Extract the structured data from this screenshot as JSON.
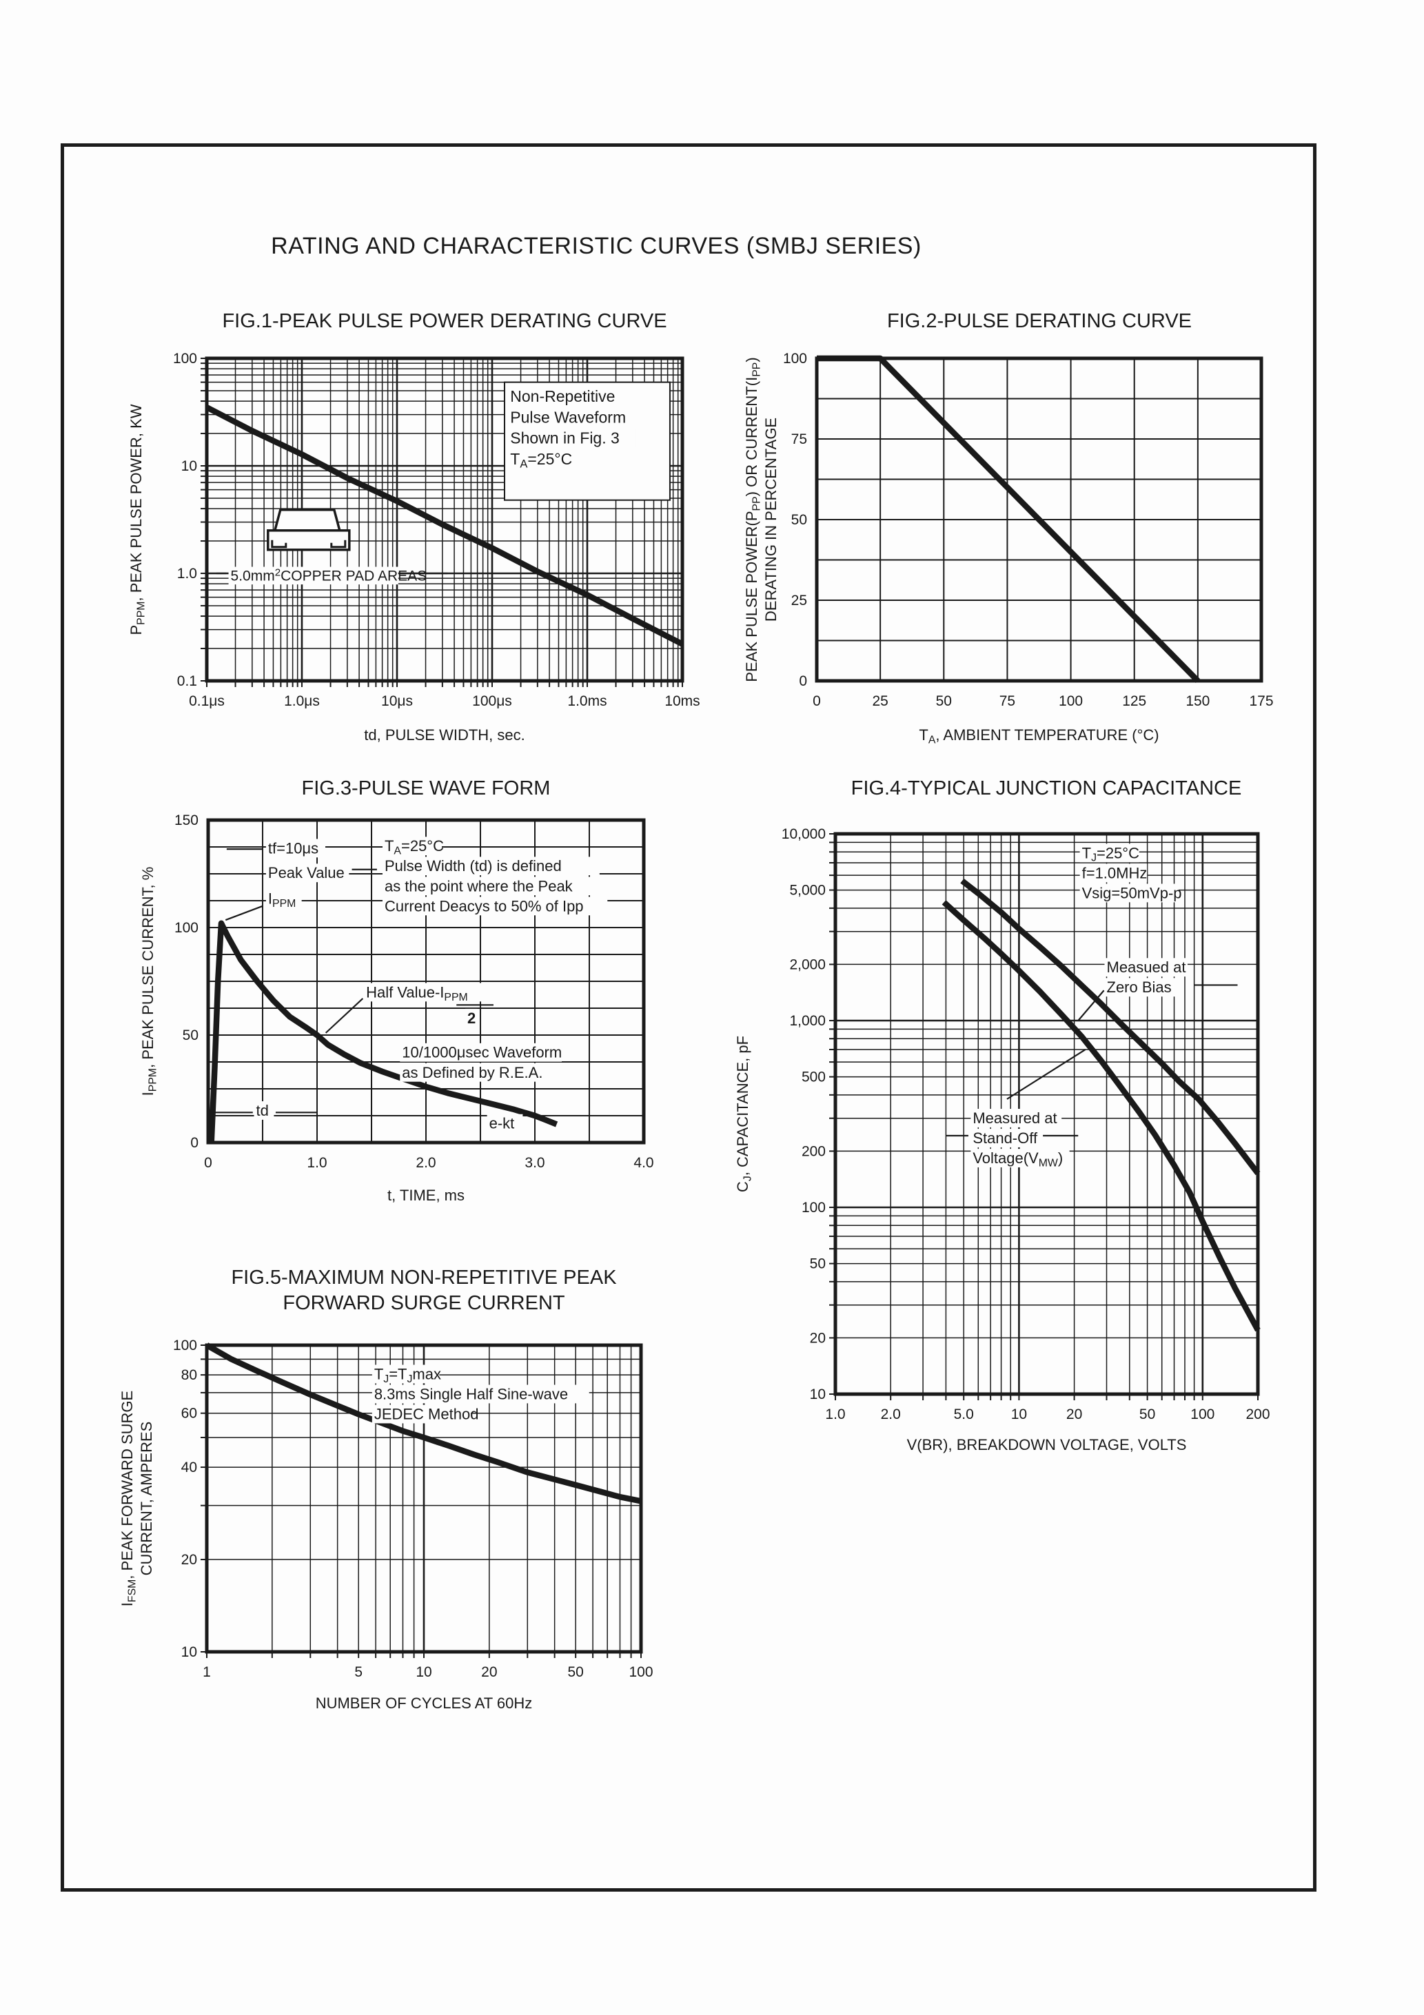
{
  "page": {
    "title": "RATING AND CHARACTERISTIC CURVES (SMBJ SERIES)"
  },
  "chart_data": [
    {
      "id": "fig1",
      "type": "line",
      "title": "FIG.1-PEAK PULSE POWER DERATING CURVE",
      "xlabel": "td, PULSE WIDTH, sec.",
      "ylabel": [
        "P[PPM], PEAK PULSE POWER, KW"
      ],
      "x_scale": "log",
      "y_scale": "log",
      "x_range": [
        1e-07,
        0.01
      ],
      "y_range": [
        0.1,
        100
      ],
      "x_ticks": [
        {
          "v": 1e-07,
          "l": "0.1μs"
        },
        {
          "v": 1e-06,
          "l": "1.0μs"
        },
        {
          "v": 1e-05,
          "l": "10μs"
        },
        {
          "v": 0.0001,
          "l": "100μs"
        },
        {
          "v": 0.001,
          "l": "1.0ms"
        },
        {
          "v": 0.01,
          "l": "10ms"
        }
      ],
      "y_ticks": [
        {
          "v": 100,
          "l": "100"
        },
        {
          "v": 10,
          "l": "10"
        },
        {
          "v": 1,
          "l": "1.0"
        },
        {
          "v": 0.1,
          "l": "0.1"
        }
      ],
      "series": [
        {
          "name": "peak-pulse-power-vs-pulse-width",
          "points": [
            [
              1e-07,
              35
            ],
            [
              3e-07,
              21.2
            ],
            [
              1e-06,
              12.8
            ],
            [
              3e-06,
              7.7
            ],
            [
              1e-05,
              4.7
            ],
            [
              3e-05,
              2.85
            ],
            [
              0.0001,
              1.72
            ],
            [
              0.0003,
              1.04
            ],
            [
              0.001,
              0.63
            ],
            [
              0.003,
              0.38
            ],
            [
              0.01,
              0.22
            ]
          ]
        }
      ],
      "annotations": [
        {
          "type": "box",
          "x1": 0.000135,
          "y1": 4.8,
          "x2": 0.0074,
          "y2": 60
        },
        {
          "type": "text",
          "x": 0.000155,
          "y": 54,
          "size": 23,
          "lines": [
            "Non-Repetitive",
            "Pulse Waveform",
            "Shown in Fig. 3",
            "T[A]=25°C"
          ]
        },
        {
          "type": "package",
          "x": 4.4e-07,
          "y": 3.9
        },
        {
          "type": "text",
          "x": 1.78e-07,
          "y": 1.14,
          "size": 21,
          "lines": [
            "5.0mm{2}COPPER PAD AREAS"
          ]
        },
        {
          "type": "line",
          "x1": 1.26e-07,
          "y1": 1.0,
          "x2": 1.6e-07,
          "y2": 1.0
        },
        {
          "type": "line",
          "x1": 1.1e-05,
          "y1": 1.0,
          "x2": 3.4e-05,
          "y2": 1.0
        }
      ]
    },
    {
      "id": "fig2",
      "type": "line",
      "title": "FIG.2-PULSE DERATING CURVE",
      "xlabel": "T[A], AMBIENT TEMPERATURE (°C)",
      "ylabel": [
        "PEAK PULSE POWER(P[PP]) OR CURRENT(I[PP])",
        "DERATING IN PERCENTAGE"
      ],
      "x_scale": "linear",
      "y_scale": "linear",
      "x_range": [
        0,
        175
      ],
      "y_range": [
        0,
        100
      ],
      "x_minor_step": 25,
      "y_minor_step": 12.5,
      "x_ticks": [
        {
          "v": 0,
          "l": "0"
        },
        {
          "v": 25,
          "l": "25"
        },
        {
          "v": 50,
          "l": "50"
        },
        {
          "v": 75,
          "l": "75"
        },
        {
          "v": 100,
          "l": "100"
        },
        {
          "v": 125,
          "l": "125"
        },
        {
          "v": 150,
          "l": "150"
        },
        {
          "v": 175,
          "l": "175"
        }
      ],
      "y_ticks": [
        {
          "v": 100,
          "l": "100"
        },
        {
          "v": 75,
          "l": "75"
        },
        {
          "v": 50,
          "l": "50"
        },
        {
          "v": 25,
          "l": "25"
        },
        {
          "v": 0,
          "l": "0"
        }
      ],
      "series": [
        {
          "name": "pulse-derating-vs-ambient-temperature",
          "points": [
            [
              0,
              100
            ],
            [
              25,
              100
            ],
            [
              150,
              0
            ]
          ]
        }
      ],
      "annotations": []
    },
    {
      "id": "fig3",
      "type": "line",
      "title": "FIG.3-PULSE WAVE FORM",
      "xlabel": "t, TIME, ms",
      "ylabel": [
        "I[PPM], PEAK PULSE CURRENT, %"
      ],
      "x_scale": "linear",
      "y_scale": "linear",
      "x_range": [
        0,
        4.0
      ],
      "y_range": [
        0,
        150
      ],
      "x_minor_step": 0.5,
      "y_minor_step": 12.5,
      "x_ticks": [
        {
          "v": 0,
          "l": "0"
        },
        {
          "v": 1,
          "l": "1.0"
        },
        {
          "v": 2,
          "l": "2.0"
        },
        {
          "v": 3,
          "l": "3.0"
        },
        {
          "v": 4,
          "l": "4.0"
        }
      ],
      "y_ticks": [
        {
          "v": 150,
          "l": "150"
        },
        {
          "v": 100,
          "l": "100"
        },
        {
          "v": 50,
          "l": "50"
        },
        {
          "v": 0,
          "l": "0"
        }
      ],
      "series": [
        {
          "name": "pulse-waveform",
          "points": [
            [
              0.03,
              0
            ],
            [
              0.06,
              35
            ],
            [
              0.09,
              75
            ],
            [
              0.12,
              102
            ],
            [
              0.18,
              96
            ],
            [
              0.3,
              85
            ],
            [
              0.45,
              75
            ],
            [
              0.6,
              66
            ],
            [
              0.75,
              58.5
            ],
            [
              0.9,
              53.5
            ],
            [
              1.0,
              50
            ],
            [
              1.1,
              45.5
            ],
            [
              1.25,
              41
            ],
            [
              1.4,
              37
            ],
            [
              1.6,
              33
            ],
            [
              1.8,
              29.5
            ],
            [
              2.0,
              26
            ],
            [
              2.2,
              23
            ],
            [
              2.4,
              20.5
            ],
            [
              2.6,
              18
            ],
            [
              2.8,
              15.5
            ],
            [
              3.0,
              12.5
            ],
            [
              3.1,
              10.5
            ],
            [
              3.2,
              8.5
            ]
          ]
        }
      ],
      "annotations": [
        {
          "type": "line",
          "x1": 0.17,
          "y1": 136.5,
          "x2": 0.5,
          "y2": 136.5
        },
        {
          "type": "text",
          "x": 0.55,
          "y": 141,
          "size": 22,
          "lines": [
            "tf=10μs"
          ]
        },
        {
          "type": "text",
          "x": 0.55,
          "y": 129.5,
          "size": 22,
          "lines": [
            "Peak Value"
          ]
        },
        {
          "type": "line",
          "x1": 1.32,
          "y1": 127,
          "x2": 1.55,
          "y2": 127
        },
        {
          "type": "text",
          "x": 0.55,
          "y": 117.5,
          "size": 22,
          "lines": [
            "I[PPM]"
          ]
        },
        {
          "type": "line",
          "x1": 0.5,
          "y1": 110,
          "x2": 0.16,
          "y2": 103.5
        },
        {
          "type": "text",
          "x": 1.62,
          "y": 142,
          "size": 22,
          "lines": [
            "T[A]=25°C",
            "Pulse Width (td) is defined",
            "as the point where the Peak",
            "Current Deacys to 50% of Ipp"
          ]
        },
        {
          "type": "text",
          "x": 1.45,
          "y": 74,
          "size": 22,
          "lines": [
            "Half Value-I[PPM]"
          ]
        },
        {
          "type": "line",
          "x1": 2.28,
          "y1": 64,
          "x2": 2.62,
          "y2": 64
        },
        {
          "type": "text",
          "x": 2.38,
          "y": 62,
          "size": 22,
          "bold": true,
          "lines": [
            "2"
          ]
        },
        {
          "type": "line",
          "x1": 1.42,
          "y1": 67,
          "x2": 1.08,
          "y2": 51
        },
        {
          "type": "text",
          "x": 1.78,
          "y": 46,
          "size": 22,
          "lines": [
            "10/1000μsec Waveform",
            "as Defined by R.E.A."
          ]
        },
        {
          "type": "text",
          "x": 0.44,
          "y": 19,
          "size": 22,
          "lines": [
            "td"
          ]
        },
        {
          "type": "line",
          "x1": 0.05,
          "y1": 14,
          "x2": 0.41,
          "y2": 14
        },
        {
          "type": "line",
          "x1": 0.62,
          "y1": 14,
          "x2": 1.0,
          "y2": 14
        },
        {
          "type": "text",
          "x": 2.58,
          "y": 13,
          "size": 22,
          "lines": [
            "e-kt"
          ]
        }
      ]
    },
    {
      "id": "fig4",
      "type": "line",
      "title": "FIG.4-TYPICAL JUNCTION CAPACITANCE",
      "xlabel": "V(BR), BREAKDOWN VOLTAGE, VOLTS",
      "ylabel": [
        "C[J], CAPACITANCE, pF"
      ],
      "x_scale": "log",
      "y_scale": "log",
      "x_range": [
        1,
        200
      ],
      "y_range": [
        10,
        10000
      ],
      "x_ticks": [
        {
          "v": 1,
          "l": "1.0"
        },
        {
          "v": 2,
          "l": "2.0"
        },
        {
          "v": 5,
          "l": "5.0"
        },
        {
          "v": 10,
          "l": "10"
        },
        {
          "v": 20,
          "l": "20"
        },
        {
          "v": 50,
          "l": "50"
        },
        {
          "v": 100,
          "l": "100"
        },
        {
          "v": 200,
          "l": "200"
        }
      ],
      "y_ticks": [
        {
          "v": 10000,
          "l": "10,000"
        },
        {
          "v": 5000,
          "l": "5,000"
        },
        {
          "v": 2000,
          "l": "2,000"
        },
        {
          "v": 1000,
          "l": "1,000"
        },
        {
          "v": 500,
          "l": "500"
        },
        {
          "v": 200,
          "l": "200"
        },
        {
          "v": 100,
          "l": "100"
        },
        {
          "v": 50,
          "l": "50"
        },
        {
          "v": 20,
          "l": "20"
        },
        {
          "v": 10,
          "l": "10"
        }
      ],
      "series": [
        {
          "name": "capacitance-zero-bias",
          "points": [
            [
              4.9,
              5600
            ],
            [
              6,
              4800
            ],
            [
              8,
              3800
            ],
            [
              10,
              3100
            ],
            [
              13,
              2480
            ],
            [
              17,
              1960
            ],
            [
              22,
              1540
            ],
            [
              28,
              1230
            ],
            [
              36,
              960
            ],
            [
              46,
              760
            ],
            [
              60,
              590
            ],
            [
              75,
              470
            ],
            [
              95,
              380
            ],
            [
              120,
              290
            ],
            [
              150,
              220
            ],
            [
              200,
              152
            ]
          ]
        },
        {
          "name": "capacitance-stand-off-voltage",
          "points": [
            [
              3.9,
              4300
            ],
            [
              5,
              3450
            ],
            [
              6.5,
              2750
            ],
            [
              8,
              2280
            ],
            [
              10,
              1850
            ],
            [
              13,
              1430
            ],
            [
              17,
              1080
            ],
            [
              22,
              820
            ],
            [
              28,
              610
            ],
            [
              35,
              455
            ],
            [
              45,
              325
            ],
            [
              55,
              245
            ],
            [
              70,
              168
            ],
            [
              85,
              120
            ],
            [
              100,
              84
            ],
            [
              125,
              53
            ],
            [
              150,
              37
            ],
            [
              175,
              28
            ],
            [
              200,
              22
            ]
          ]
        }
      ],
      "annotations": [
        {
          "type": "text",
          "x": 22,
          "y": 8800,
          "size": 22,
          "lines": [
            "T[J]=25°C",
            "f=1.0MHz",
            "Vsig=50mVp-p"
          ]
        },
        {
          "type": "text",
          "x": 30,
          "y": 2150,
          "size": 22,
          "lines": [
            "Measued at",
            "Zero Bias"
          ]
        },
        {
          "type": "line",
          "x1": 90,
          "y1": 1550,
          "x2": 155,
          "y2": 1550
        },
        {
          "type": "line",
          "x1": 29,
          "y1": 1450,
          "x2": 21,
          "y2": 1000
        },
        {
          "type": "text",
          "x": 5.6,
          "y": 335,
          "size": 22,
          "lines": [
            "Measured at",
            "Stand-Off",
            "Voltage(V[MW])"
          ]
        },
        {
          "type": "line",
          "x1": 8.6,
          "y1": 380,
          "x2": 23,
          "y2": 700
        },
        {
          "type": "line",
          "x1": 4.0,
          "y1": 242,
          "x2": 5.3,
          "y2": 242
        },
        {
          "type": "line",
          "x1": 13.5,
          "y1": 242,
          "x2": 21,
          "y2": 242
        }
      ]
    },
    {
      "id": "fig5",
      "type": "line",
      "title": "FIG.5-MAXIMUM NON-REPETITIVE PEAK\nFORWARD SURGE CURRENT",
      "xlabel": "NUMBER OF CYCLES AT 60Hz",
      "ylabel": [
        "I[FSM], PEAK FORWARD SURGE",
        "CURRENT, AMPERES"
      ],
      "x_scale": "log",
      "y_scale": "log",
      "x_range": [
        1,
        100
      ],
      "y_range": [
        10,
        100
      ],
      "x_ticks": [
        {
          "v": 1,
          "l": "1"
        },
        {
          "v": 5,
          "l": "5"
        },
        {
          "v": 10,
          "l": "10"
        },
        {
          "v": 20,
          "l": "20"
        },
        {
          "v": 50,
          "l": "50"
        },
        {
          "v": 100,
          "l": "100"
        }
      ],
      "y_ticks": [
        {
          "v": 100,
          "l": "100"
        },
        {
          "v": 80,
          "l": "80"
        },
        {
          "v": 60,
          "l": "60"
        },
        {
          "v": 40,
          "l": "40"
        },
        {
          "v": 20,
          "l": "20"
        },
        {
          "v": 10,
          "l": "10"
        }
      ],
      "series": [
        {
          "name": "peak-forward-surge-current-vs-cycles",
          "points": [
            [
              1,
              100
            ],
            [
              1.3,
              90
            ],
            [
              1.7,
              82.5
            ],
            [
              2.2,
              76
            ],
            [
              3,
              69
            ],
            [
              4,
              63.5
            ],
            [
              5,
              59.5
            ],
            [
              6.5,
              55.5
            ],
            [
              8,
              52.5
            ],
            [
              10,
              50
            ],
            [
              13,
              47
            ],
            [
              17,
              44
            ],
            [
              22,
              41.5
            ],
            [
              30,
              38.5
            ],
            [
              40,
              36.5
            ],
            [
              50,
              35
            ],
            [
              65,
              33.3
            ],
            [
              80,
              32
            ],
            [
              100,
              31
            ]
          ]
        }
      ],
      "annotations": [
        {
          "type": "text",
          "x": 5.9,
          "y": 86,
          "size": 22,
          "lines": [
            "T[J]=T[J]max",
            "8.3ms Single Half Sine-wave",
            "JEDEC Method"
          ]
        }
      ]
    }
  ],
  "colors": {
    "ink": "#1a1a1a",
    "paper": "#fdfdfd"
  }
}
